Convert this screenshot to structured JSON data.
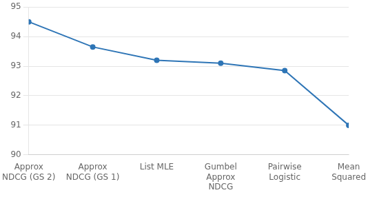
{
  "chart_data": {
    "type": "line",
    "categories": [
      "Approx\nNDCG (GS 2)",
      "Approx\nNDCG (GS 1)",
      "List MLE",
      "Gumbel\nApprox\nNDCG",
      "Pairwise\nLogistic",
      "Mean\nSquared"
    ],
    "values": [
      94.5,
      93.65,
      93.2,
      93.1,
      92.85,
      91.0
    ],
    "color": "#2e75b6",
    "marker": "circle",
    "ylim": [
      90,
      95
    ],
    "yticks": [
      90,
      91,
      92,
      93,
      94,
      95
    ],
    "grid": true
  }
}
